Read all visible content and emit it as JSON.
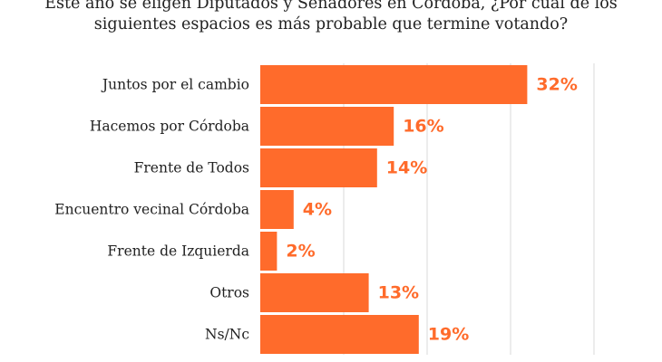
{
  "chart_data": {
    "type": "bar",
    "orientation": "horizontal",
    "title_lines": [
      "Este año se eligen Diputados y Senadores en Córdoba, ¿Por cuál de los",
      "siguientes espacios es más probable que termine votando?"
    ],
    "categories": [
      "Juntos por el cambio",
      "Hacemos por Córdoba",
      "Frente de Todos",
      "Encuentro vecinal Córdoba",
      "Frente de Izquierda",
      "Otros",
      "Ns/Nc"
    ],
    "values": [
      32,
      16,
      14,
      4,
      2,
      13,
      19
    ],
    "value_labels": [
      "32%",
      "16%",
      "14%",
      "4%",
      "2%",
      "13%",
      "19%"
    ],
    "xlim": [
      0,
      40
    ],
    "grid": true,
    "legend": "none",
    "colors": {
      "bar": "#FF6B2B",
      "value_label": "#FF6B2B",
      "grid": "#d9d9d9"
    }
  }
}
